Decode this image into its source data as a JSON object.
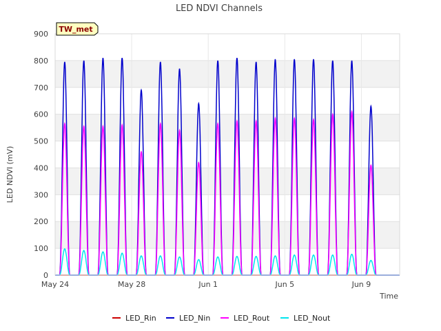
{
  "chart_data": {
    "type": "line",
    "title": "LED NDVI Channels",
    "badge": "TW_met",
    "xlabel": "Time",
    "ylabel": "LED NDVI (mV)",
    "xlim": [
      "2024-05-24",
      "2024-06-11"
    ],
    "ylim": [
      0,
      900
    ],
    "yticks": [
      0,
      100,
      200,
      300,
      400,
      500,
      600,
      700,
      800,
      900
    ],
    "xticks": [
      {
        "date": "2024-05-24",
        "label": "May 24"
      },
      {
        "date": "2024-05-28",
        "label": "May 28"
      },
      {
        "date": "2024-06-01",
        "label": "Jun 1"
      },
      {
        "date": "2024-06-05",
        "label": "Jun 5"
      },
      {
        "date": "2024-06-09",
        "label": "Jun 9"
      }
    ],
    "grid": true,
    "legend_position": "bottom",
    "days": [
      "2024-05-24",
      "2024-05-25",
      "2024-05-26",
      "2024-05-27",
      "2024-05-28",
      "2024-05-29",
      "2024-05-30",
      "2024-05-31",
      "2024-06-01",
      "2024-06-02",
      "2024-06-03",
      "2024-06-04",
      "2024-06-05",
      "2024-06-06",
      "2024-06-07",
      "2024-06-08",
      "2024-06-09",
      "2024-06-10"
    ],
    "series": [
      {
        "name": "LED_Rin",
        "color": "#cc0000",
        "daily_peak": [
          0,
          0,
          0,
          0,
          0,
          0,
          0,
          0,
          0,
          0,
          0,
          0,
          0,
          0,
          0,
          0,
          0,
          0
        ]
      },
      {
        "name": "LED_Nin",
        "color": "#0000cc",
        "daily_peak": [
          795,
          800,
          810,
          810,
          690,
          795,
          770,
          640,
          800,
          810,
          795,
          805,
          805,
          805,
          800,
          800,
          630,
          0
        ]
      },
      {
        "name": "LED_Rout",
        "color": "#ff00ff",
        "daily_peak": [
          565,
          555,
          555,
          560,
          460,
          565,
          540,
          420,
          565,
          575,
          575,
          585,
          585,
          580,
          600,
          610,
          410,
          0
        ]
      },
      {
        "name": "LED_Nout",
        "color": "#00e5ee",
        "daily_peak": [
          98,
          92,
          87,
          82,
          72,
          72,
          68,
          58,
          68,
          70,
          70,
          72,
          75,
          75,
          75,
          78,
          55,
          0
        ]
      }
    ]
  }
}
